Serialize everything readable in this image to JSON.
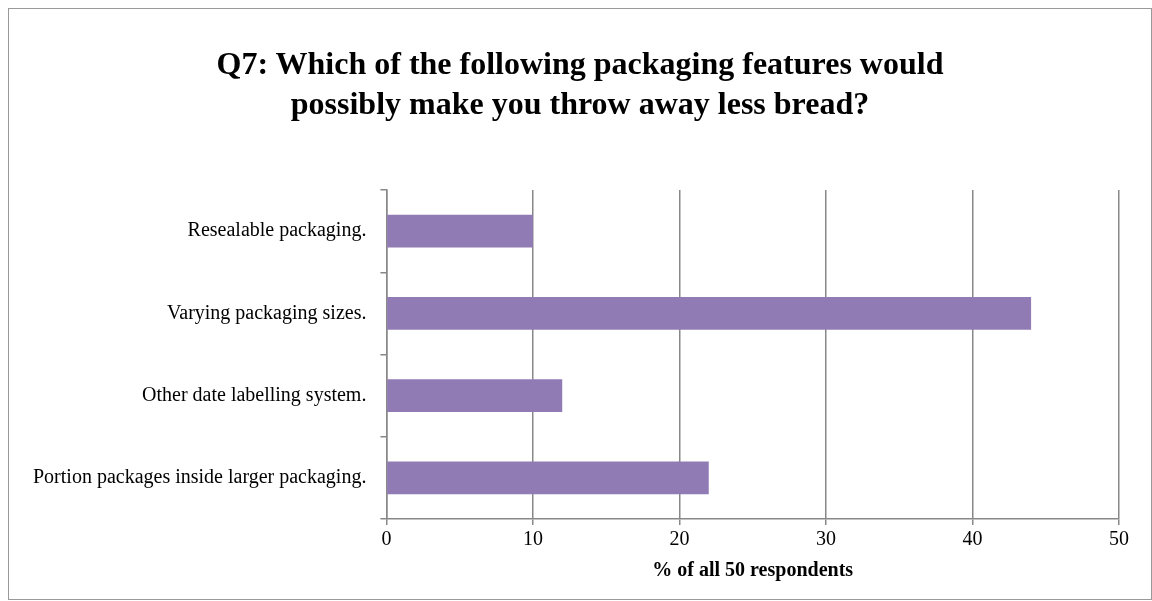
{
  "chart_data": {
    "type": "bar",
    "orientation": "horizontal",
    "title": "Q7: Which of the following packaging features would possibly make you throw away less bread?",
    "xlabel": "% of all 50 respondents",
    "categories": [
      "Resealable packaging.",
      "Varying packaging sizes.",
      "Other date labelling system.",
      "Portion packages inside larger packaging."
    ],
    "values": [
      10,
      44,
      12,
      22
    ],
    "color": "#917bb4",
    "xlim": [
      0,
      50
    ],
    "xticks": [
      0,
      10,
      20,
      30,
      40,
      50
    ],
    "grid": "x",
    "legend": false
  }
}
